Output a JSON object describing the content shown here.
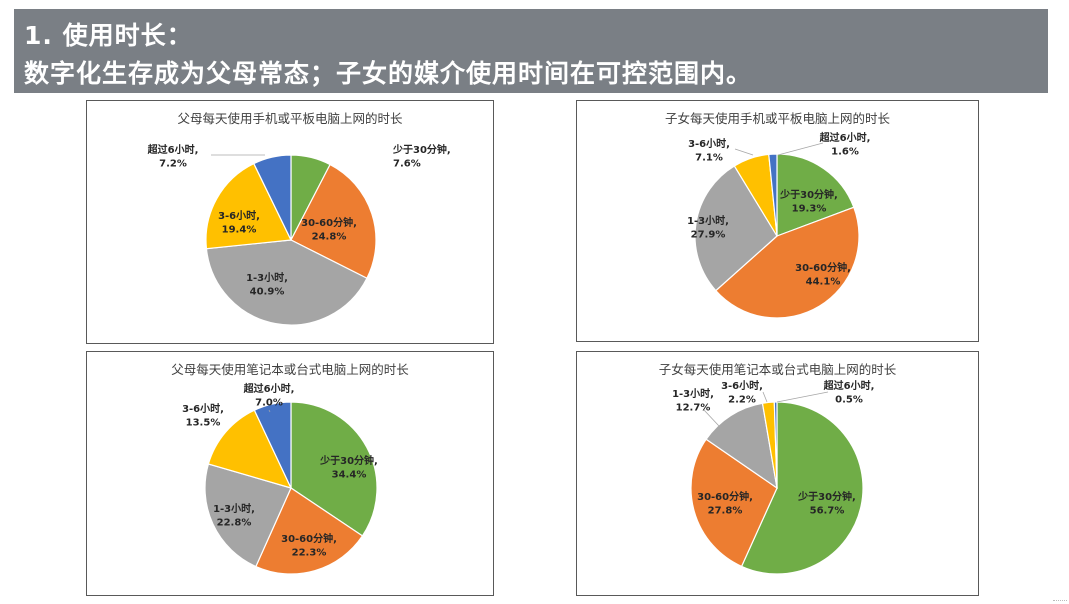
{
  "header": {
    "line1": "1.   使用时长：",
    "line2": "数字化生存成为父母常态；子女的媒介使用时间在可控范围内。"
  },
  "colors": {
    "header_bg": "#7a7f85",
    "less_30min": "#70ad47",
    "30_60min": "#ed7d31",
    "1_3h": "#a5a5a5",
    "3_6h": "#ffc000",
    "over_6h": "#4472c4"
  },
  "chart_data": [
    {
      "type": "pie",
      "title": "父母每天使用手机或平板电脑上网的时长",
      "categories": [
        "少于30分钟",
        "30-60分钟",
        "1-3小时",
        "3-6小时",
        "超过6小时"
      ],
      "values": [
        7.6,
        24.8,
        40.9,
        19.4,
        7.2
      ],
      "labels": [
        "少于30分钟,",
        "30-60分钟,",
        "1-3小时,",
        "3-6小时,",
        "超过6小时,"
      ],
      "value_labels": [
        "7.6%",
        "24.8%",
        "40.9%",
        "19.4%",
        "7.2%"
      ]
    },
    {
      "type": "pie",
      "title": "子女每天使用手机或平板电脑上网的时长",
      "categories": [
        "少于30分钟",
        "30-60分钟",
        "1-3小时",
        "3-6小时",
        "超过6小时"
      ],
      "values": [
        19.3,
        44.1,
        27.9,
        7.1,
        1.6
      ],
      "labels": [
        "少于30分钟,",
        "30-60分钟,",
        "1-3小时,",
        "3-6小时,",
        "超过6小时,"
      ],
      "value_labels": [
        "19.3%",
        "44.1%",
        "27.9%",
        "7.1%",
        "1.6%"
      ]
    },
    {
      "type": "pie",
      "title": "父母每天使用笔记本或台式电脑上网的时长",
      "categories": [
        "少于30分钟",
        "30-60分钟",
        "1-3小时",
        "3-6小时",
        "超过6小时"
      ],
      "values": [
        34.4,
        22.3,
        22.8,
        13.5,
        7.0
      ],
      "labels": [
        "少于30分钟,",
        "30-60分钟,",
        "1-3小时,",
        "3-6小时,",
        "超过6小时,"
      ],
      "value_labels": [
        "34.4%",
        "22.3%",
        "22.8%",
        "13.5%",
        "7.0%"
      ]
    },
    {
      "type": "pie",
      "title": "子女每天使用笔记本或台式电脑上网的时长",
      "categories": [
        "少于30分钟",
        "30-60分钟",
        "1-3小时",
        "3-6小时",
        "超过6小时"
      ],
      "values": [
        56.7,
        27.8,
        12.7,
        2.2,
        0.5
      ],
      "labels": [
        "少于30分钟,",
        "30-60分钟,",
        "1-3小时,",
        "3-6小时,",
        "超过6小时,"
      ],
      "value_labels": [
        "56.7%",
        "27.8%",
        "12.7%",
        "2.2%",
        "0.5%"
      ]
    }
  ]
}
